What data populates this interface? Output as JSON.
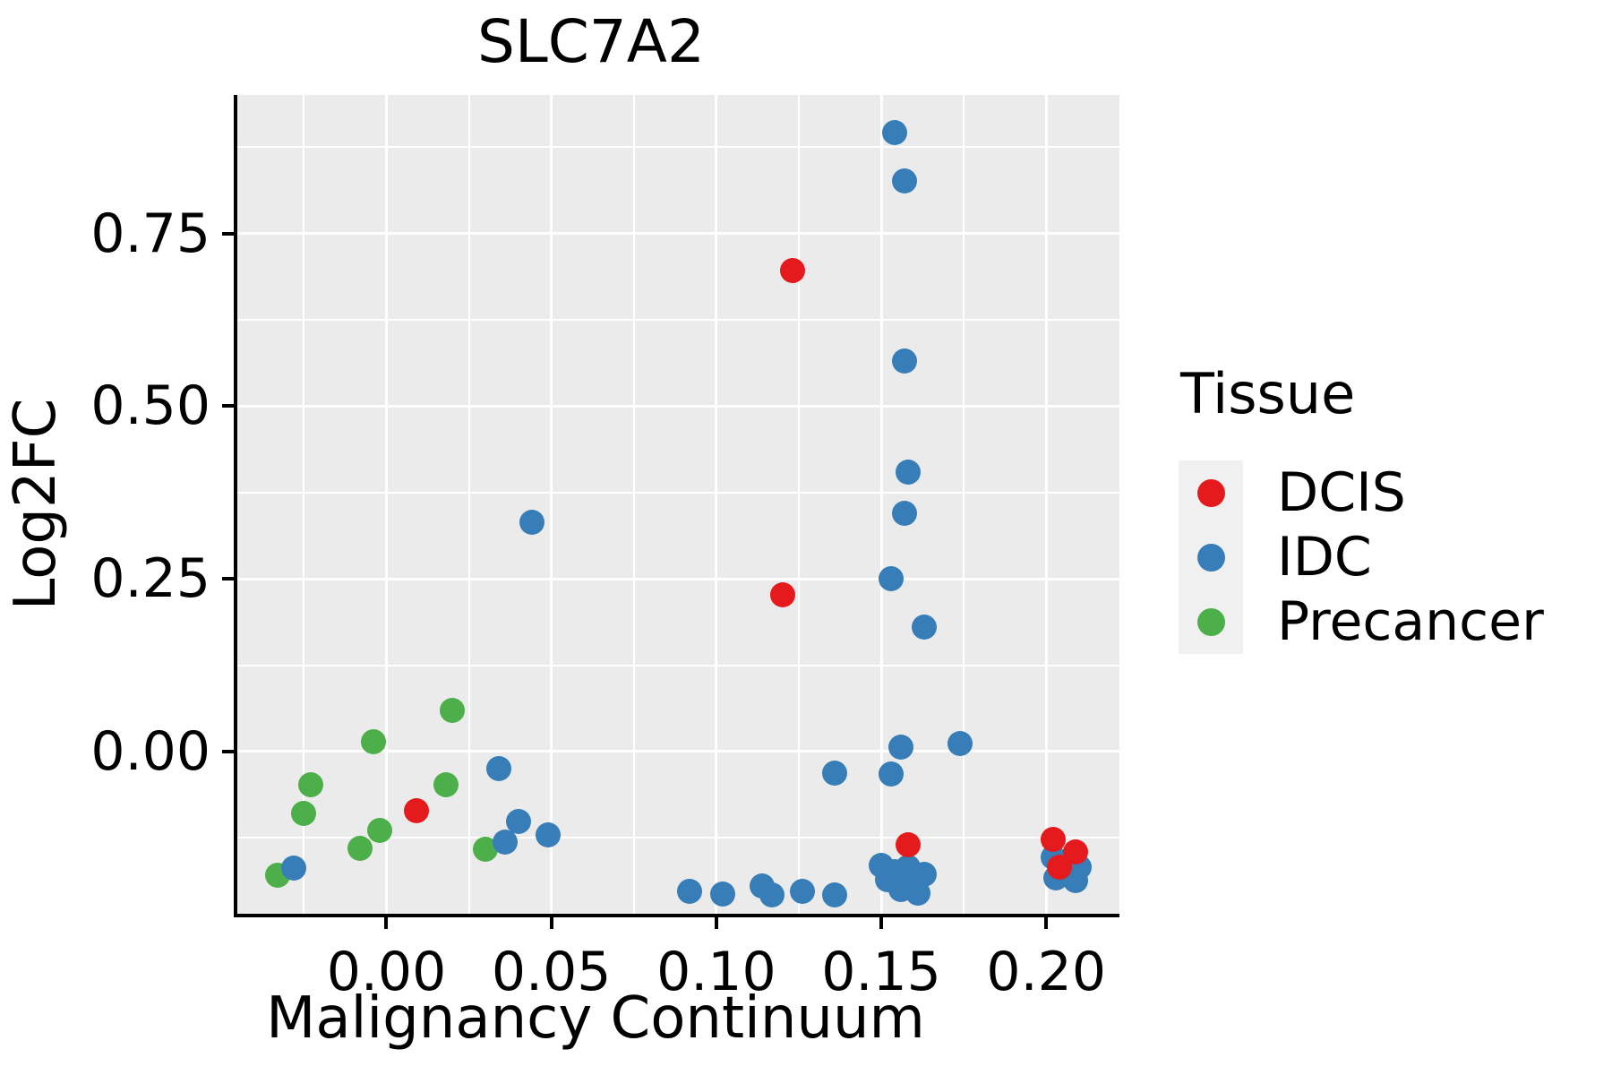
{
  "title": "SLC7A2",
  "axes": {
    "x_label": "Malignancy Continuum",
    "y_label": "Log2FC"
  },
  "legend": {
    "title": "Tissue",
    "entries": [
      {
        "label": "DCIS",
        "color": "#e41a1c"
      },
      {
        "label": "IDC",
        "color": "#377eb8"
      },
      {
        "label": "Precancer",
        "color": "#4daf4a"
      }
    ]
  },
  "colors": {
    "panel_background": "#ebebeb",
    "gridline": "#ffffff",
    "axis_line": "#000000",
    "legend_key_background": "#f0f0f0",
    "text": "#000000"
  },
  "chart_data": {
    "type": "scatter",
    "title": "SLC7A2",
    "xlabel": "Malignancy Continuum",
    "ylabel": "Log2FC",
    "x_domain": [
      -0.0452,
      0.2222
    ],
    "y_domain": [
      -0.2348,
      0.9506
    ],
    "grid": "on",
    "legend_position": "right",
    "x_ticks": [
      {
        "value": 0.0,
        "label": "0.00"
      },
      {
        "value": 0.05,
        "label": "0.05"
      },
      {
        "value": 0.1,
        "label": "0.10"
      },
      {
        "value": 0.15,
        "label": "0.15"
      },
      {
        "value": 0.2,
        "label": "0.20"
      }
    ],
    "y_ticks": [
      {
        "value": 0.0,
        "label": "0.00"
      },
      {
        "value": 0.25,
        "label": "0.25"
      },
      {
        "value": 0.5,
        "label": "0.50"
      },
      {
        "value": 0.75,
        "label": "0.75"
      }
    ],
    "x_minor_ticks": [
      -0.025,
      0.025,
      0.075,
      0.125,
      0.175
    ],
    "y_minor_ticks": [
      -0.125,
      0.125,
      0.375,
      0.625,
      0.875
    ],
    "series": [
      {
        "name": "Precancer",
        "color": "#4daf4a",
        "points": [
          [
            -0.033,
            -0.179
          ],
          [
            -0.025,
            -0.089
          ],
          [
            -0.023,
            -0.048
          ],
          [
            -0.008,
            -0.14
          ],
          [
            -0.002,
            -0.114
          ],
          [
            -0.004,
            0.014
          ],
          [
            0.018,
            -0.048
          ],
          [
            0.02,
            0.06
          ],
          [
            0.03,
            -0.141
          ]
        ]
      },
      {
        "name": "IDC",
        "color": "#377eb8",
        "points": [
          [
            -0.028,
            -0.169
          ],
          [
            0.034,
            -0.025
          ],
          [
            0.036,
            -0.131
          ],
          [
            0.04,
            -0.101
          ],
          [
            0.049,
            -0.121
          ],
          [
            0.044,
            0.332
          ],
          [
            0.154,
            0.896
          ],
          [
            0.157,
            0.826
          ],
          [
            0.157,
            0.565
          ],
          [
            0.158,
            0.405
          ],
          [
            0.157,
            0.345
          ],
          [
            0.153,
            0.25
          ],
          [
            0.163,
            0.18
          ],
          [
            0.136,
            -0.031
          ],
          [
            0.153,
            -0.032
          ],
          [
            0.156,
            0.006
          ],
          [
            0.174,
            0.012
          ],
          [
            0.092,
            -0.202
          ],
          [
            0.102,
            -0.206
          ],
          [
            0.114,
            -0.195
          ],
          [
            0.117,
            -0.208
          ],
          [
            0.126,
            -0.203
          ],
          [
            0.136,
            -0.207
          ],
          [
            0.15,
            -0.165
          ],
          [
            0.152,
            -0.186
          ],
          [
            0.154,
            -0.174
          ],
          [
            0.156,
            -0.2
          ],
          [
            0.158,
            -0.168
          ],
          [
            0.16,
            -0.188
          ],
          [
            0.161,
            -0.205
          ],
          [
            0.163,
            -0.178
          ],
          [
            0.202,
            -0.153
          ],
          [
            0.21,
            -0.167
          ],
          [
            0.203,
            -0.183
          ],
          [
            0.209,
            -0.187
          ]
        ]
      },
      {
        "name": "DCIS",
        "color": "#e41a1c",
        "points": [
          [
            0.009,
            -0.086
          ],
          [
            0.12,
            0.227
          ],
          [
            0.123,
            0.696
          ],
          [
            0.158,
            -0.135
          ],
          [
            0.202,
            -0.127
          ],
          [
            0.209,
            -0.145
          ],
          [
            0.204,
            -0.167
          ]
        ]
      }
    ]
  }
}
